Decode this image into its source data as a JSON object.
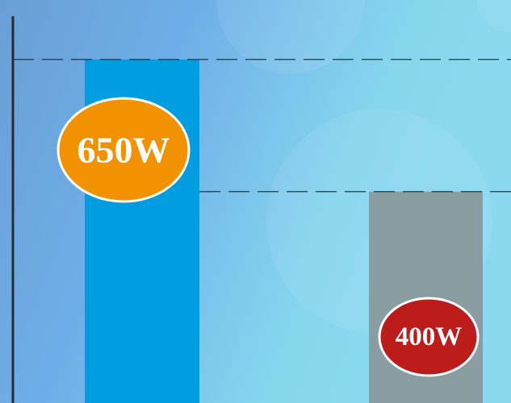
{
  "chart_data": {
    "type": "bar",
    "values": [
      650,
      400
    ],
    "value_labels": [
      "650W",
      "400W"
    ],
    "colors": [
      "#009ee0",
      "#8a9ea1"
    ],
    "label_colors": [
      "#f39200",
      "#bd1d1a"
    ],
    "ylim": [
      0,
      700
    ],
    "reference_lines": true
  }
}
